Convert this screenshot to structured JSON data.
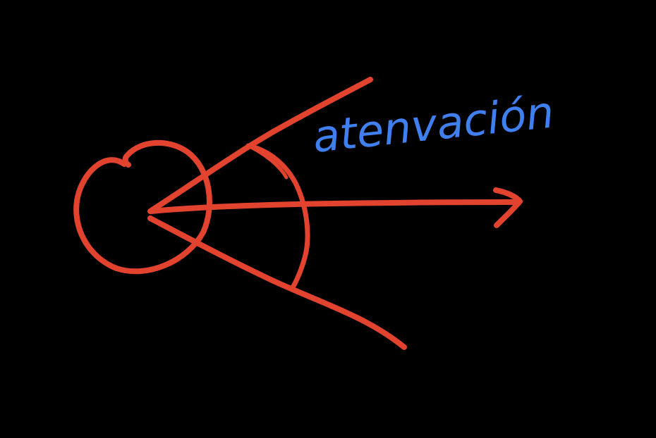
{
  "diagram": {
    "background": "#000000",
    "stroke_color": "#E2432F",
    "label_color": "#3F7FF0",
    "label_text": "atenvación"
  }
}
